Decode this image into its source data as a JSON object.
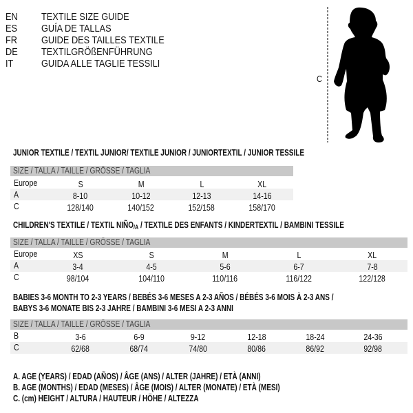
{
  "languages": [
    {
      "code": "EN",
      "title": "TEXTILE SIZE GUIDE"
    },
    {
      "code": "ES",
      "title": "GUÍA DE TALLAS"
    },
    {
      "code": "FR",
      "title": "GUIDE DES TAILLES TEXTILE"
    },
    {
      "code": "DE",
      "title": "TEXTILGRÖßENFÜHRUNG"
    },
    {
      "code": "IT",
      "title": "GUIDA ALLE TAGLIE TESSILI"
    }
  ],
  "figure": {
    "height_label": "C",
    "icon": "child-silhouette"
  },
  "size_header": "SIZE / TALLA / TAILLE / GRÖSSE / TAGLIA",
  "tables": [
    {
      "title": "JUNIOR TEXTILE / TEXTIL JUNIOR/ TEXTILE JUNIOR / JUNIORTEXTIL / JUNIOR TESSILE",
      "rows": [
        {
          "label": "Europe",
          "values": [
            "S",
            "M",
            "L",
            "XL"
          ]
        },
        {
          "label": "A",
          "values": [
            "8-10",
            "10-12",
            "12-13",
            "14-16"
          ]
        },
        {
          "label": "C",
          "values": [
            "128/140",
            "140/152",
            "152/158",
            "158/170"
          ]
        }
      ]
    },
    {
      "title_a": "CHILDREN'S TEXTILE / TEXTIL NIÑO",
      "title_sub": "/A",
      "title_b": " / TEXTILE DES ENFANTS / KINDERTEXTIL / BAMBINI TESSILE",
      "rows": [
        {
          "label": "Europe",
          "values": [
            "XS",
            "S",
            "M",
            "L",
            "XL"
          ]
        },
        {
          "label": "A",
          "values": [
            "3-4",
            "4-5",
            "5-6",
            "6-7",
            "7-8"
          ]
        },
        {
          "label": "C",
          "values": [
            "98/104",
            "104/110",
            "110/116",
            "116/122",
            "122/128"
          ]
        }
      ]
    },
    {
      "title_line1": "BABIES 3-6 MONTH TO 2-3 YEARS / BEBÉS 3-6 MESES A 2-3 AÑOS / BÉBÉS 3-6 MOIS À 2-3 ANS /",
      "title_line2": "BABYS 3-6 MONATE BIS 2-3 JAHRE / BAMBINI 3-6 MESI A 2-3 ANNI",
      "rows": [
        {
          "label": "B",
          "values": [
            "3-6",
            "6-9",
            "9-12",
            "12-18",
            "18-24",
            "24-36"
          ]
        },
        {
          "label": "C",
          "values": [
            "62/68",
            "68/74",
            "74/80",
            "80/86",
            "86/92",
            "92/98"
          ]
        }
      ]
    }
  ],
  "legend": [
    "A. AGE (YEARS) / EDAD (AÑOS) / ÂGE (ANS) / ALTER (JAHRE) / ETÀ (ANNI)",
    "B. AGE (MONTHS) / EDAD (MESES) / ÂGE (MOIS) / ALTER (MONATE) / ETÀ (MESI)",
    "C. (cm) HEIGHT / ALTURA / HAUTEUR / HÖHE / ALTEZZA"
  ],
  "colors": {
    "header_bar": "#c8c8c8",
    "alt_row": "#f0f0f0",
    "text": "#111111"
  }
}
